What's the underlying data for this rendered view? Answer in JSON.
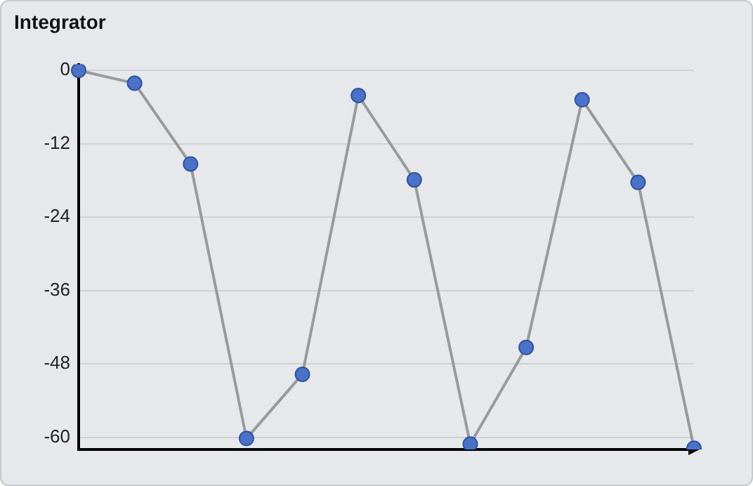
{
  "chart_data": {
    "type": "line",
    "title": "Integrator",
    "categories": [
      null,
      null,
      null,
      null,
      null,
      null,
      null,
      null,
      null,
      null,
      null,
      null
    ],
    "series": [
      {
        "color": "#4a72c8",
        "values": [
          0,
          -2.1,
          -15.3,
          -60.2,
          -49.7,
          -4.1,
          -17.9,
          -61.1,
          -45.3,
          -4.8,
          -18.3,
          -61.8
        ]
      }
    ],
    "ylim": [
      -62,
      1
    ],
    "yticks": [
      0,
      -12,
      -24,
      -36,
      -48,
      -60
    ],
    "grid": "y",
    "marker": "circle",
    "line_style": "solid",
    "tick_labels": "y"
  }
}
